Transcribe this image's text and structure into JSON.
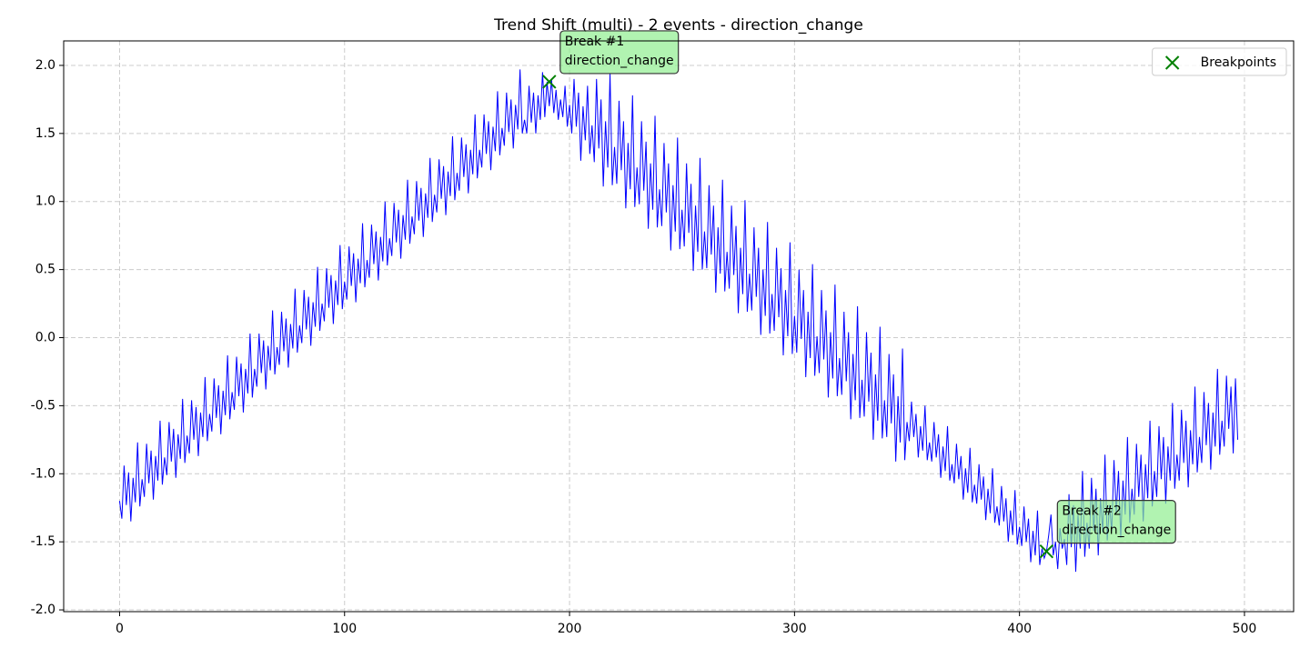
{
  "chart_data": {
    "type": "line",
    "title": "Trend Shift (multi) - 2 events - direction_change",
    "x": [
      0,
      1,
      2,
      3,
      4,
      5,
      6,
      7,
      8,
      9,
      10,
      11,
      12,
      13,
      14,
      15,
      16,
      17,
      18,
      19,
      20,
      21,
      22,
      23,
      24,
      25,
      26,
      27,
      28,
      29,
      30,
      31,
      32,
      33,
      34,
      35,
      36,
      37,
      38,
      39,
      40,
      41,
      42,
      43,
      44,
      45,
      46,
      47,
      48,
      49,
      50,
      51,
      52,
      53,
      54,
      55,
      56,
      57,
      58,
      59,
      60,
      61,
      62,
      63,
      64,
      65,
      66,
      67,
      68,
      69,
      70,
      71,
      72,
      73,
      74,
      75,
      76,
      77,
      78,
      79,
      80,
      81,
      82,
      83,
      84,
      85,
      86,
      87,
      88,
      89,
      90,
      91,
      92,
      93,
      94,
      95,
      96,
      97,
      98,
      99,
      100,
      101,
      102,
      103,
      104,
      105,
      106,
      107,
      108,
      109,
      110,
      111,
      112,
      113,
      114,
      115,
      116,
      117,
      118,
      119,
      120,
      121,
      122,
      123,
      124,
      125,
      126,
      127,
      128,
      129,
      130,
      131,
      132,
      133,
      134,
      135,
      136,
      137,
      138,
      139,
      140,
      141,
      142,
      143,
      144,
      145,
      146,
      147,
      148,
      149,
      150,
      151,
      152,
      153,
      154,
      155,
      156,
      157,
      158,
      159,
      160,
      161,
      162,
      163,
      164,
      165,
      166,
      167,
      168,
      169,
      170,
      171,
      172,
      173,
      174,
      175,
      176,
      177,
      178,
      179,
      180,
      181,
      182,
      183,
      184,
      185,
      186,
      187,
      188,
      189,
      190,
      191,
      192,
      193,
      194,
      195,
      196,
      197,
      198,
      199,
      200,
      201,
      202,
      203,
      204,
      205,
      206,
      207,
      208,
      209,
      210,
      211,
      212,
      213,
      214,
      215,
      216,
      217,
      218,
      219,
      220,
      221,
      222,
      223,
      224,
      225,
      226,
      227,
      228,
      229,
      230,
      231,
      232,
      233,
      234,
      235,
      236,
      237,
      238,
      239,
      240,
      241,
      242,
      243,
      244,
      245,
      246,
      247,
      248,
      249,
      250,
      251,
      252,
      253,
      254,
      255,
      256,
      257,
      258,
      259,
      260,
      261,
      262,
      263,
      264,
      265,
      266,
      267,
      268,
      269,
      270,
      271,
      272,
      273,
      274,
      275,
      276,
      277,
      278,
      279,
      280,
      281,
      282,
      283,
      284,
      285,
      286,
      287,
      288,
      289,
      290,
      291,
      292,
      293,
      294,
      295,
      296,
      297,
      298,
      299,
      300,
      301,
      302,
      303,
      304,
      305,
      306,
      307,
      308,
      309,
      310,
      311,
      312,
      313,
      314,
      315,
      316,
      317,
      318,
      319,
      320,
      321,
      322,
      323,
      324,
      325,
      326,
      327,
      328,
      329,
      330,
      331,
      332,
      333,
      334,
      335,
      336,
      337,
      338,
      339,
      340,
      341,
      342,
      343,
      344,
      345,
      346,
      347,
      348,
      349,
      350,
      351,
      352,
      353,
      354,
      355,
      356,
      357,
      358,
      359,
      360,
      361,
      362,
      363,
      364,
      365,
      366,
      367,
      368,
      369,
      370,
      371,
      372,
      373,
      374,
      375,
      376,
      377,
      378,
      379,
      380,
      381,
      382,
      383,
      384,
      385,
      386,
      387,
      388,
      389,
      390,
      391,
      392,
      393,
      394,
      395,
      396,
      397,
      398,
      399,
      400,
      401,
      402,
      403,
      404,
      405,
      406,
      407,
      408,
      409,
      410,
      411,
      412,
      413,
      414,
      415,
      416,
      417,
      418,
      419,
      420,
      421,
      422,
      423,
      424,
      425,
      426,
      427,
      428,
      429,
      430,
      431,
      432,
      433,
      434,
      435,
      436,
      437,
      438,
      439,
      440,
      441,
      442,
      443,
      444,
      445,
      446,
      447,
      448,
      449,
      450,
      451,
      452,
      453,
      454,
      455,
      456,
      457,
      458,
      459,
      460,
      461,
      462,
      463,
      464,
      465,
      466,
      467,
      468,
      469,
      470,
      471,
      472,
      473,
      474,
      475,
      476,
      477,
      478,
      479,
      480,
      481,
      482,
      483,
      484,
      485,
      486,
      487,
      488,
      489,
      490,
      491,
      492,
      493,
      494,
      495,
      496,
      497
    ],
    "series": [
      {
        "color": "#0000ff",
        "values": [
          -1.2,
          -1.33,
          -0.94,
          -1.23,
          -0.99,
          -1.35,
          -1.03,
          -1.21,
          -0.77,
          -1.24,
          -1.04,
          -1.17,
          -0.78,
          -1.07,
          -0.83,
          -1.19,
          -0.87,
          -1.05,
          -0.61,
          -1.08,
          -0.88,
          -1.01,
          -0.62,
          -0.91,
          -0.67,
          -1.03,
          -0.71,
          -0.89,
          -0.45,
          -0.92,
          -0.72,
          -0.85,
          -0.46,
          -0.75,
          -0.51,
          -0.87,
          -0.55,
          -0.73,
          -0.29,
          -0.76,
          -0.56,
          -0.69,
          -0.3,
          -0.59,
          -0.35,
          -0.71,
          -0.39,
          -0.57,
          -0.13,
          -0.6,
          -0.4,
          -0.53,
          -0.14,
          -0.43,
          -0.19,
          -0.55,
          -0.23,
          -0.41,
          0.03,
          -0.44,
          -0.23,
          -0.36,
          0.03,
          -0.26,
          -0.02,
          -0.38,
          -0.06,
          -0.24,
          0.2,
          -0.27,
          -0.07,
          -0.2,
          0.19,
          -0.1,
          0.14,
          -0.22,
          0.1,
          -0.08,
          0.36,
          -0.11,
          0.09,
          -0.04,
          0.35,
          0.06,
          0.3,
          -0.06,
          0.26,
          0.08,
          0.52,
          0.05,
          0.25,
          0.12,
          0.51,
          0.22,
          0.46,
          0.1,
          0.42,
          0.24,
          0.68,
          0.21,
          0.41,
          0.28,
          0.67,
          0.38,
          0.62,
          0.26,
          0.58,
          0.4,
          0.84,
          0.37,
          0.57,
          0.44,
          0.83,
          0.54,
          0.78,
          0.42,
          0.74,
          0.56,
          1.0,
          0.53,
          0.73,
          0.6,
          0.99,
          0.7,
          0.94,
          0.58,
          0.9,
          0.72,
          1.16,
          0.69,
          0.89,
          0.76,
          1.15,
          0.86,
          1.1,
          0.74,
          1.06,
          0.88,
          1.32,
          0.85,
          1.05,
          0.92,
          1.31,
          1.02,
          1.26,
          0.9,
          1.22,
          1.04,
          1.48,
          1.01,
          1.21,
          1.08,
          1.47,
          1.18,
          1.42,
          1.06,
          1.38,
          1.2,
          1.64,
          1.17,
          1.38,
          1.25,
          1.64,
          1.35,
          1.59,
          1.23,
          1.55,
          1.37,
          1.81,
          1.34,
          1.54,
          1.41,
          1.8,
          1.51,
          1.75,
          1.39,
          1.71,
          1.53,
          1.97,
          1.5,
          1.6,
          1.5,
          1.85,
          1.58,
          1.8,
          1.5,
          1.78,
          1.6,
          1.95,
          1.62,
          1.88,
          1.7,
          1.9,
          1.65,
          1.82,
          1.6,
          1.75,
          1.62,
          1.85,
          1.55,
          1.71,
          1.5,
          1.9,
          1.55,
          1.8,
          1.3,
          1.7,
          1.45,
          1.85,
          1.35,
          1.56,
          1.29,
          1.9,
          1.39,
          1.75,
          1.11,
          1.59,
          1.25,
          1.94,
          1.12,
          1.4,
          1.13,
          1.74,
          1.23,
          1.59,
          0.95,
          1.43,
          1.09,
          1.78,
          0.96,
          1.25,
          0.98,
          1.59,
          1.08,
          1.44,
          0.8,
          1.28,
          0.94,
          1.63,
          0.81,
          1.09,
          0.82,
          1.43,
          0.92,
          1.28,
          0.64,
          1.12,
          0.78,
          1.47,
          0.65,
          0.94,
          0.67,
          1.28,
          0.77,
          1.13,
          0.49,
          0.97,
          0.63,
          1.32,
          0.5,
          0.78,
          0.51,
          1.12,
          0.61,
          0.97,
          0.33,
          0.81,
          0.47,
          1.16,
          0.34,
          0.63,
          0.36,
          0.97,
          0.46,
          0.82,
          0.18,
          0.66,
          0.32,
          1.01,
          0.19,
          0.47,
          0.2,
          0.81,
          0.3,
          0.66,
          0.02,
          0.5,
          0.16,
          0.85,
          0.03,
          0.32,
          0.05,
          0.66,
          0.15,
          0.51,
          -0.13,
          0.35,
          0.01,
          0.7,
          -0.12,
          0.16,
          -0.11,
          0.5,
          -0.01,
          0.35,
          -0.29,
          0.19,
          -0.15,
          0.54,
          -0.28,
          0.01,
          -0.26,
          0.35,
          -0.16,
          0.2,
          -0.44,
          0.04,
          -0.3,
          0.39,
          -0.43,
          -0.15,
          -0.42,
          0.19,
          -0.32,
          0.04,
          -0.6,
          -0.12,
          -0.46,
          0.23,
          -0.59,
          -0.31,
          -0.58,
          0.04,
          -0.47,
          -0.11,
          -0.75,
          -0.27,
          -0.61,
          0.08,
          -0.74,
          -0.46,
          -0.73,
          -0.12,
          -0.63,
          -0.27,
          -0.91,
          -0.43,
          -0.77,
          -0.08,
          -0.9,
          -0.62,
          -0.76,
          -0.47,
          -0.73,
          -0.56,
          -0.88,
          -0.65,
          -0.83,
          -0.5,
          -0.9,
          -0.77,
          -0.91,
          -0.62,
          -0.88,
          -0.71,
          -1.03,
          -0.8,
          -0.98,
          -0.65,
          -1.05,
          -0.93,
          -1.07,
          -0.78,
          -1.04,
          -0.87,
          -1.19,
          -0.96,
          -1.14,
          -0.81,
          -1.21,
          -1.08,
          -1.22,
          -0.93,
          -1.19,
          -1.02,
          -1.34,
          -1.11,
          -1.29,
          -0.96,
          -1.36,
          -1.24,
          -1.38,
          -1.09,
          -1.35,
          -1.18,
          -1.5,
          -1.27,
          -1.45,
          -1.12,
          -1.52,
          -1.39,
          -1.53,
          -1.24,
          -1.5,
          -1.33,
          -1.65,
          -1.42,
          -1.6,
          -1.27,
          -1.67,
          -1.55,
          -1.62,
          -1.57,
          -1.45,
          -1.3,
          -1.6,
          -1.5,
          -1.7,
          -1.4,
          -1.55,
          -1.48,
          -1.67,
          -1.15,
          -1.54,
          -1.23,
          -1.72,
          -1.3,
          -1.55,
          -0.98,
          -1.61,
          -1.36,
          -1.55,
          -1.03,
          -1.42,
          -1.11,
          -1.6,
          -1.18,
          -1.43,
          -0.86,
          -1.49,
          -1.23,
          -1.42,
          -0.9,
          -1.29,
          -0.98,
          -1.47,
          -1.05,
          -1.3,
          -0.73,
          -1.36,
          -1.11,
          -1.3,
          -0.78,
          -1.17,
          -0.86,
          -1.35,
          -0.93,
          -1.18,
          -0.61,
          -1.24,
          -0.98,
          -1.17,
          -0.65,
          -1.04,
          -0.73,
          -1.22,
          -0.8,
          -1.05,
          -0.48,
          -1.11,
          -0.86,
          -1.05,
          -0.53,
          -0.92,
          -0.61,
          -1.1,
          -0.68,
          -0.93,
          -0.36,
          -0.99,
          -0.73,
          -0.92,
          -0.4,
          -0.79,
          -0.48,
          -0.97,
          -0.55,
          -0.8,
          -0.23,
          -0.86,
          -0.61,
          -0.8,
          -0.28,
          -0.67,
          -0.36,
          -0.85,
          -0.3,
          -0.75
        ]
      },
      {
        "name": "Breakpoints",
        "type": "scatter",
        "marker": "x",
        "color": "#008000",
        "x": [
          191,
          412
        ],
        "values": [
          1.88,
          -1.57
        ]
      }
    ],
    "annotations": [
      {
        "lines": [
          "Break #1",
          "direction_change"
        ],
        "color": "#90ee90"
      },
      {
        "lines": [
          "Break #2",
          "direction_change"
        ],
        "color": "#90ee90"
      }
    ],
    "xlim": [
      -24.85,
      521.85
    ],
    "xticks": [
      0,
      100,
      200,
      300,
      400,
      500
    ],
    "ylim": [
      -2.013,
      2.18
    ],
    "yticks": [
      {
        "value": -2,
        "label": "-2.0"
      },
      {
        "value": -1.5,
        "label": "-1.5"
      },
      {
        "value": -1,
        "label": "-1.0"
      },
      {
        "value": -0.5,
        "label": "-0.5"
      },
      {
        "value": 0,
        "label": "0.0"
      },
      {
        "value": 0.5,
        "label": "0.5"
      },
      {
        "value": 1,
        "label": "1.0"
      },
      {
        "value": 1.5,
        "label": "1.5"
      },
      {
        "value": 2,
        "label": "2.0"
      }
    ],
    "grid": true,
    "legend": "upper right"
  }
}
